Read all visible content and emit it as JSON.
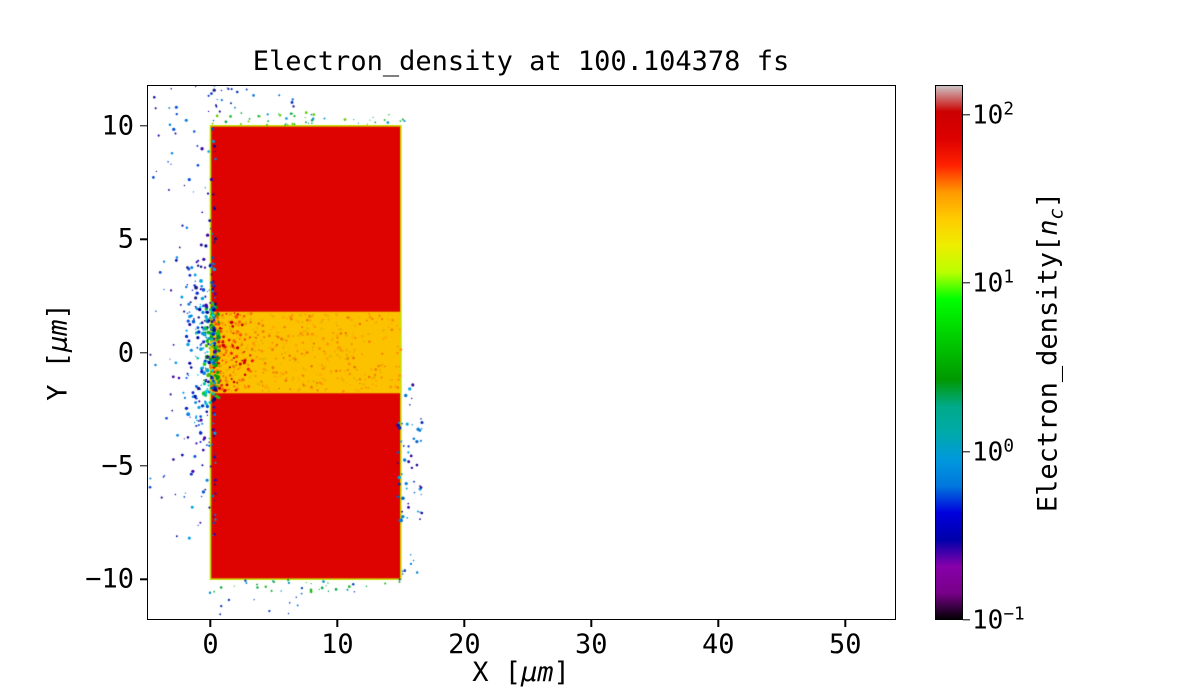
{
  "chart_data": {
    "type": "heatmap",
    "title": "Electron_density at 100.104378 fs",
    "time_fs": "100.104378",
    "xlabel": {
      "pre": "X [",
      "math": "μm",
      "post": "]"
    },
    "ylabel": {
      "pre": "Y [",
      "math": "μm",
      "post": "]"
    },
    "xlim": [
      -5,
      54
    ],
    "ylim": [
      -11.8,
      11.8
    ],
    "xticks": [
      0,
      10,
      20,
      30,
      40,
      50
    ],
    "xtick_labels": [
      "0",
      "10",
      "20",
      "30",
      "40",
      "50"
    ],
    "yticks": [
      -10,
      -5,
      0,
      5,
      10
    ],
    "ytick_labels": [
      "−10",
      "−5",
      "0",
      "5",
      "10"
    ],
    "grid": false,
    "seed": 7,
    "colorbar": {
      "label": {
        "pre": "Electron_density[",
        "math": "n",
        "sub": "c",
        "post": "]"
      },
      "scale": "log",
      "vmin": 0.1,
      "vmax": 150,
      "colormap": "nipy_spectral",
      "ticks": [
        {
          "base": "10",
          "exp": "2",
          "value": 100
        },
        {
          "base": "10",
          "exp": "1",
          "value": 10
        },
        {
          "base": "10",
          "exp": "0",
          "value": 1
        },
        {
          "base": "10",
          "exp": "−1",
          "value": 0.1
        }
      ],
      "stops": [
        [
          0.0,
          "#000000"
        ],
        [
          0.05,
          "#770088"
        ],
        [
          0.1,
          "#8800aa"
        ],
        [
          0.15,
          "#0000aa"
        ],
        [
          0.2,
          "#0000dd"
        ],
        [
          0.25,
          "#0077dd"
        ],
        [
          0.3,
          "#0099dd"
        ],
        [
          0.35,
          "#00aaaa"
        ],
        [
          0.4,
          "#00aa88"
        ],
        [
          0.45,
          "#009900"
        ],
        [
          0.5,
          "#00bb00"
        ],
        [
          0.55,
          "#00dd00"
        ],
        [
          0.6,
          "#00ff00"
        ],
        [
          0.65,
          "#bbff00"
        ],
        [
          0.7,
          "#eeee00"
        ],
        [
          0.75,
          "#ffcc00"
        ],
        [
          0.8,
          "#ff9900"
        ],
        [
          0.85,
          "#ff2200"
        ],
        [
          0.9,
          "#dd0000"
        ],
        [
          0.95,
          "#cc0000"
        ],
        [
          1.0,
          "#cccccc"
        ]
      ]
    },
    "features": {
      "slab": {
        "x": [
          0,
          15
        ],
        "y": [
          -10,
          10
        ],
        "density_nc": 120,
        "color": "#de0300"
      },
      "channel": {
        "x": [
          0,
          15
        ],
        "y": [
          -1.8,
          1.8
        ],
        "density_nc": 30,
        "color": "#fcc200"
      },
      "outline_color": "#c8e000"
    },
    "speckle_clusters": [
      {
        "name": "channel-speckle",
        "count": 520,
        "x": [
          0,
          15
        ],
        "bias": 1.25,
        "y": [
          -1.72,
          1.72
        ],
        "r": [
          0.6,
          1.5
        ],
        "colors": [
          "#ff9100",
          "#ffaa00",
          "#f07800",
          "#e8b400"
        ]
      },
      {
        "name": "channel-entrance-red",
        "count": 120,
        "x": [
          0.25,
          3.4
        ],
        "bias": 1.7,
        "y": [
          -1.75,
          1.75
        ],
        "r": [
          0.7,
          1.8
        ],
        "colors": [
          "#e81400",
          "#ff4800",
          "#c80000",
          "#ff6a00"
        ]
      },
      {
        "name": "entrance-green-strip",
        "count": 85,
        "x": [
          0.65,
          -0.55
        ],
        "bias": 1.4,
        "y": [
          -2.05,
          2.15
        ],
        "r": [
          0.8,
          2.3
        ],
        "colors": [
          "#00a800",
          "#11c822",
          "#44b800",
          "#008833"
        ]
      },
      {
        "name": "entrance-cyan-fringe",
        "count": 60,
        "x": [
          0.35,
          -1.2
        ],
        "bias": 1.5,
        "y": [
          -2.45,
          2.5
        ],
        "r": [
          0.7,
          1.7
        ],
        "colors": [
          "#00b8dd",
          "#00d2ee",
          "#0096cc",
          "#00c8a0"
        ]
      },
      {
        "name": "left-scatter-core",
        "count": 160,
        "x": [
          0.35,
          -1.9
        ],
        "bias": 1.7,
        "y": [
          -4.2,
          4.3
        ],
        "r": [
          0.7,
          1.9
        ],
        "colors": [
          "#0000a0",
          "#0022c8",
          "#0050d8",
          "#0080e0",
          "#00a0e0",
          "#3a00a8",
          "#151580"
        ]
      },
      {
        "name": "left-scatter-spread",
        "count": 140,
        "x": [
          0.4,
          -3.1
        ],
        "bias": 1.9,
        "y": [
          -8.6,
          11.9
        ],
        "r": [
          0.6,
          1.7
        ],
        "colors": [
          "#0000a0",
          "#0022c8",
          "#0050d8",
          "#0080e0",
          "#00a0e0",
          "#3a00a8",
          "#151580"
        ]
      },
      {
        "name": "left-scatter-far",
        "count": 30,
        "x": [
          -2.6,
          -4.8
        ],
        "bias": 1.2,
        "y": [
          -7,
          11.9
        ],
        "r": [
          0.6,
          1.4
        ],
        "colors": [
          "#0000a0",
          "#0040d0",
          "#0080e0",
          "#2a0090"
        ]
      },
      {
        "name": "top-edge-specks",
        "count": 48,
        "x": [
          0.1,
          15.3
        ],
        "bias": 1,
        "y": [
          10.03,
          10.6
        ],
        "r": [
          0.6,
          1.4
        ],
        "colors": [
          "#00a844",
          "#22b822",
          "#0090cc",
          "#66c800"
        ]
      },
      {
        "name": "top-left-above",
        "count": 20,
        "x": [
          -0.6,
          7
        ],
        "bias": 1.3,
        "y": [
          10.6,
          11.8
        ],
        "r": [
          0.6,
          1.4
        ],
        "colors": [
          "#0030c0",
          "#0070d8",
          "#0000a0"
        ]
      },
      {
        "name": "bottom-edge-specks",
        "count": 36,
        "x": [
          -0.3,
          15.3
        ],
        "bias": 1,
        "y": [
          -10.6,
          -10.03
        ],
        "r": [
          0.6,
          1.4
        ],
        "colors": [
          "#00a844",
          "#0090cc",
          "#22b822",
          "#0040c0"
        ]
      },
      {
        "name": "bottom-below",
        "count": 10,
        "x": [
          0,
          8
        ],
        "bias": 1,
        "y": [
          -11.6,
          -10.6
        ],
        "r": [
          0.6,
          1.3
        ],
        "colors": [
          "#0030c0",
          "#0070d8"
        ]
      },
      {
        "name": "right-side-scatter",
        "count": 55,
        "x": [
          14.75,
          16.7
        ],
        "bias": 1.35,
        "y": [
          -7.7,
          -1.2
        ],
        "r": [
          0.7,
          1.8
        ],
        "colors": [
          "#0028b8",
          "#0060d0",
          "#00a0e0",
          "#2a0098",
          "#0080d8"
        ]
      },
      {
        "name": "right-side-low",
        "count": 8,
        "x": [
          14.9,
          16.3
        ],
        "bias": 1,
        "y": [
          -10.4,
          -8.8
        ],
        "r": [
          0.6,
          1.3
        ],
        "colors": [
          "#0040c0",
          "#0080d8"
        ]
      }
    ]
  }
}
